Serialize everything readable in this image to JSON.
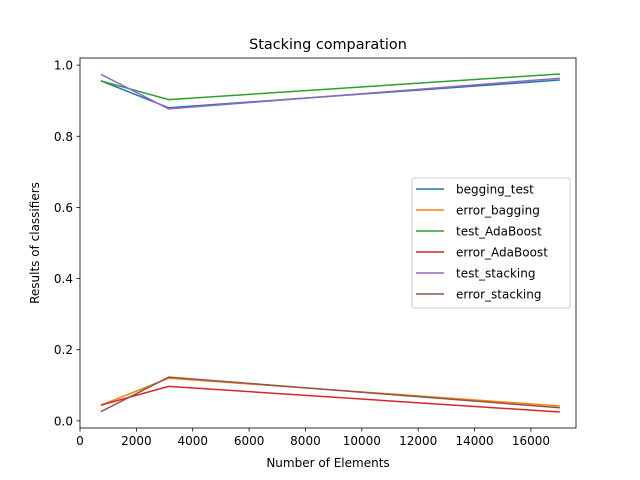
{
  "chart_data": {
    "type": "line",
    "title": "Stacking comparation",
    "xlabel": "Number of Elements",
    "ylabel": "Results of classifiers",
    "xlim": [
      0,
      17600
    ],
    "ylim": [
      -0.02,
      1.02
    ],
    "xticks": [
      0,
      2000,
      4000,
      6000,
      8000,
      10000,
      12000,
      14000,
      16000
    ],
    "yticks": [
      0.0,
      0.2,
      0.4,
      0.6,
      0.8,
      1.0
    ],
    "xtick_labels": [
      "0",
      "2000",
      "4000",
      "6000",
      "8000",
      "10000",
      "12000",
      "14000",
      "16000"
    ],
    "ytick_labels": [
      "0.0",
      "0.2",
      "0.4",
      "0.6",
      "0.8",
      "1.0"
    ],
    "legend_position": "center-right",
    "x": [
      768,
      3151,
      17000
    ],
    "series": [
      {
        "name": "begging_test",
        "color": "#1f77b4",
        "values": [
          0.955,
          0.88,
          0.958
        ]
      },
      {
        "name": "error_bagging",
        "color": "#ff7f0e",
        "values": [
          0.045,
          0.12,
          0.042
        ]
      },
      {
        "name": "test_AdaBoost",
        "color": "#2ca02c",
        "values": [
          0.955,
          0.903,
          0.975
        ]
      },
      {
        "name": "error_AdaBoost",
        "color": "#d62728",
        "values": [
          0.045,
          0.097,
          0.025
        ]
      },
      {
        "name": "test_stacking",
        "color": "#9467bd",
        "values": [
          0.973,
          0.877,
          0.963
        ]
      },
      {
        "name": "error_stacking",
        "color": "#8c564b",
        "values": [
          0.027,
          0.123,
          0.037
        ]
      }
    ]
  }
}
